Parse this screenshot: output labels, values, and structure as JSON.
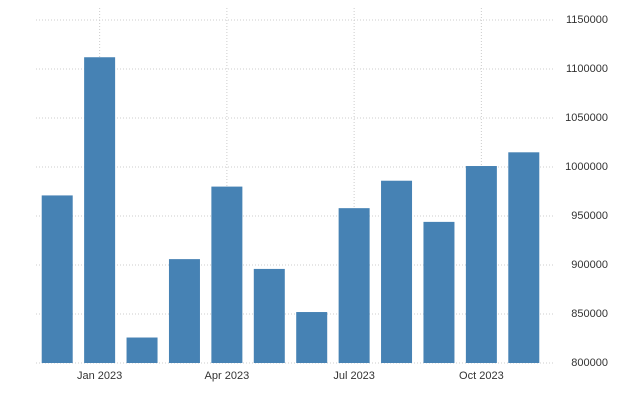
{
  "chart_data": {
    "type": "bar",
    "categories": [
      null,
      "Jan 2023",
      null,
      null,
      "Apr 2023",
      null,
      null,
      "Jul 2023",
      null,
      null,
      "Oct 2023",
      null
    ],
    "values": [
      971000,
      1112000,
      826000,
      906000,
      980000,
      896000,
      852000,
      958000,
      986000,
      944000,
      1001000,
      1015000
    ],
    "color": "#4682b4",
    "ylim": [
      800000,
      1150000
    ],
    "yticks": [
      800000,
      850000,
      900000,
      950000,
      1000000,
      1050000,
      1100000,
      1150000
    ],
    "grid": true
  }
}
